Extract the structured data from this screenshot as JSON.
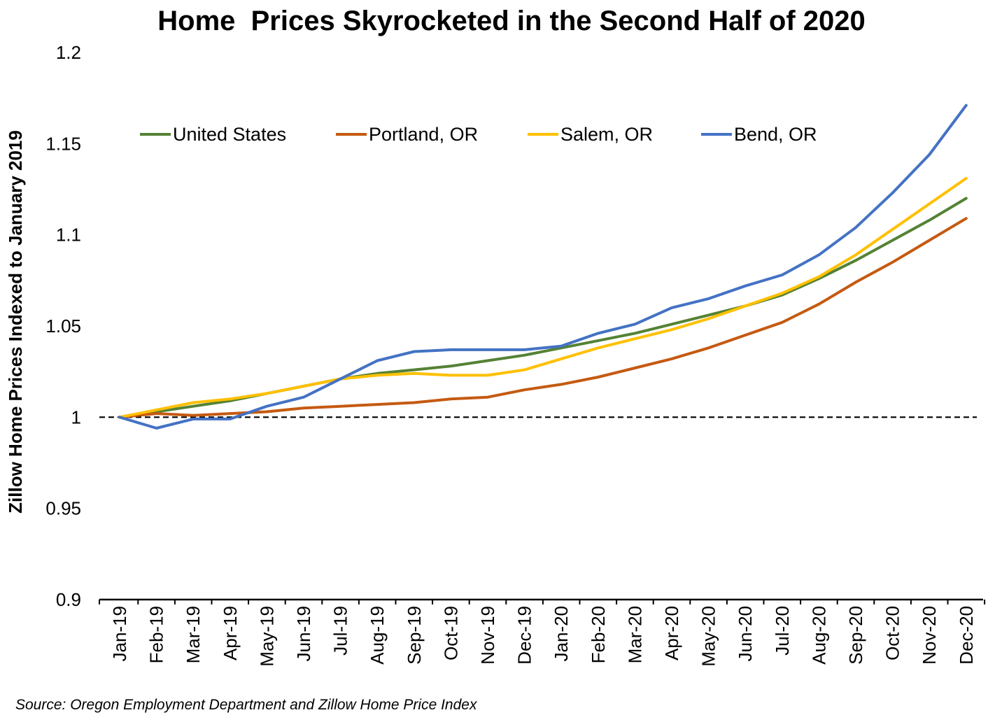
{
  "chart_data": {
    "type": "line",
    "title": "Home  Prices Skyrocketed in the Second Half of 2020",
    "ylabel": "Zillow Home Prices Indexed to January 2019",
    "xlabel": "",
    "source": "Source: Oregon Employment Department and Zillow Home Price Index",
    "ylim": [
      0.9,
      1.2
    ],
    "yticks": [
      "0.9",
      "0.95",
      "1",
      "1.05",
      "1.1",
      "1.15",
      "1.2"
    ],
    "categories": [
      "Jan-19",
      "Feb-19",
      "Mar-19",
      "Apr-19",
      "May-19",
      "Jun-19",
      "Jul-19",
      "Aug-19",
      "Sep-19",
      "Oct-19",
      "Nov-19",
      "Dec-19",
      "Jan-20",
      "Feb-20",
      "Mar-20",
      "Apr-20",
      "May-20",
      "Jun-20",
      "Jul-20",
      "Aug-20",
      "Sep-20",
      "Oct-20",
      "Nov-20",
      "Dec-20"
    ],
    "reference_line": {
      "y": 1.0,
      "style": "dashed"
    },
    "legend_position": "top",
    "grid": false,
    "series": [
      {
        "name": "United States",
        "color": "#548235",
        "values": [
          1.0,
          1.003,
          1.006,
          1.009,
          1.013,
          1.017,
          1.021,
          1.024,
          1.026,
          1.028,
          1.031,
          1.034,
          1.038,
          1.042,
          1.046,
          1.051,
          1.056,
          1.061,
          1.067,
          1.076,
          1.086,
          1.097,
          1.108,
          1.12
        ]
      },
      {
        "name": "Portland, OR",
        "color": "#C55A11",
        "values": [
          1.0,
          1.002,
          1.001,
          1.002,
          1.003,
          1.005,
          1.006,
          1.007,
          1.008,
          1.01,
          1.011,
          1.015,
          1.018,
          1.022,
          1.027,
          1.032,
          1.038,
          1.045,
          1.052,
          1.062,
          1.074,
          1.085,
          1.097,
          1.109
        ]
      },
      {
        "name": "Salem, OR",
        "color": "#FFC000",
        "values": [
          1.0,
          1.004,
          1.008,
          1.01,
          1.013,
          1.017,
          1.021,
          1.023,
          1.024,
          1.023,
          1.023,
          1.026,
          1.032,
          1.038,
          1.043,
          1.048,
          1.054,
          1.061,
          1.068,
          1.077,
          1.089,
          1.103,
          1.117,
          1.131
        ]
      },
      {
        "name": "Bend, OR",
        "color": "#4472C4",
        "values": [
          1.0,
          0.994,
          0.999,
          0.999,
          1.006,
          1.011,
          1.021,
          1.031,
          1.036,
          1.037,
          1.037,
          1.037,
          1.039,
          1.046,
          1.051,
          1.06,
          1.065,
          1.072,
          1.078,
          1.089,
          1.104,
          1.123,
          1.144,
          1.171
        ]
      }
    ]
  }
}
